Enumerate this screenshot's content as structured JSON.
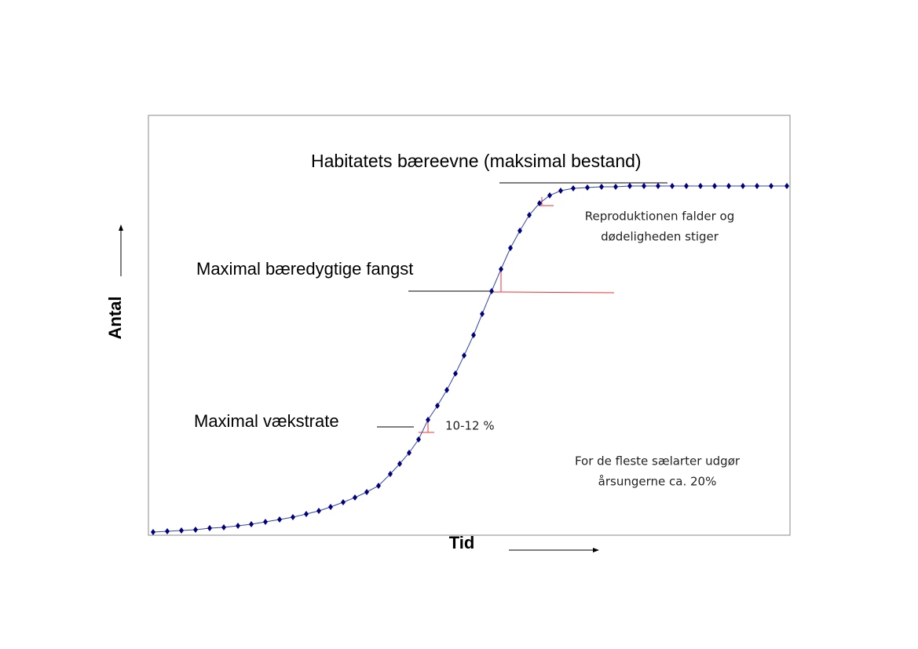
{
  "chart_data": {
    "type": "line",
    "x_label": "Tid",
    "y_label": "Antal",
    "annotations": [
      "Habitatets bæreevne (maksimal bestand)",
      "Maximal bæredygtige fangst",
      "Maximal vækstrate",
      "10-12 %",
      "Reproduktionen falder og",
      "dødeligheden stiger",
      "For de fleste sælarter udgør",
      "årsungerne ca. 20%"
    ],
    "x": [
      6,
      24,
      42,
      60,
      78,
      96,
      114,
      131,
      149,
      167,
      184,
      201,
      217,
      232,
      248,
      263,
      278,
      293,
      308,
      320,
      332,
      344,
      356,
      368,
      380,
      391,
      402,
      414,
      425,
      437,
      449,
      461,
      473,
      485,
      498,
      511,
      525,
      541,
      559,
      577,
      595,
      613,
      631,
      649,
      667,
      685,
      703,
      721,
      739,
      757,
      775,
      793,
      813
    ],
    "series": [
      {
        "color": "#000080",
        "values": [
          4,
          5,
          6,
          7,
          9,
          10,
          12,
          14,
          17,
          20,
          23,
          27,
          31,
          36,
          42,
          48,
          55,
          63,
          78,
          91,
          105,
          122,
          147,
          165,
          185,
          206,
          229,
          255,
          282,
          311,
          339,
          366,
          388,
          408,
          423,
          433,
          439,
          442,
          443,
          444,
          444,
          445,
          445,
          445,
          445,
          445,
          445,
          445,
          445,
          445,
          445,
          445,
          445
        ]
      }
    ],
    "xlim": [
      0,
      817
    ],
    "ylim": [
      0,
      535
    ]
  }
}
